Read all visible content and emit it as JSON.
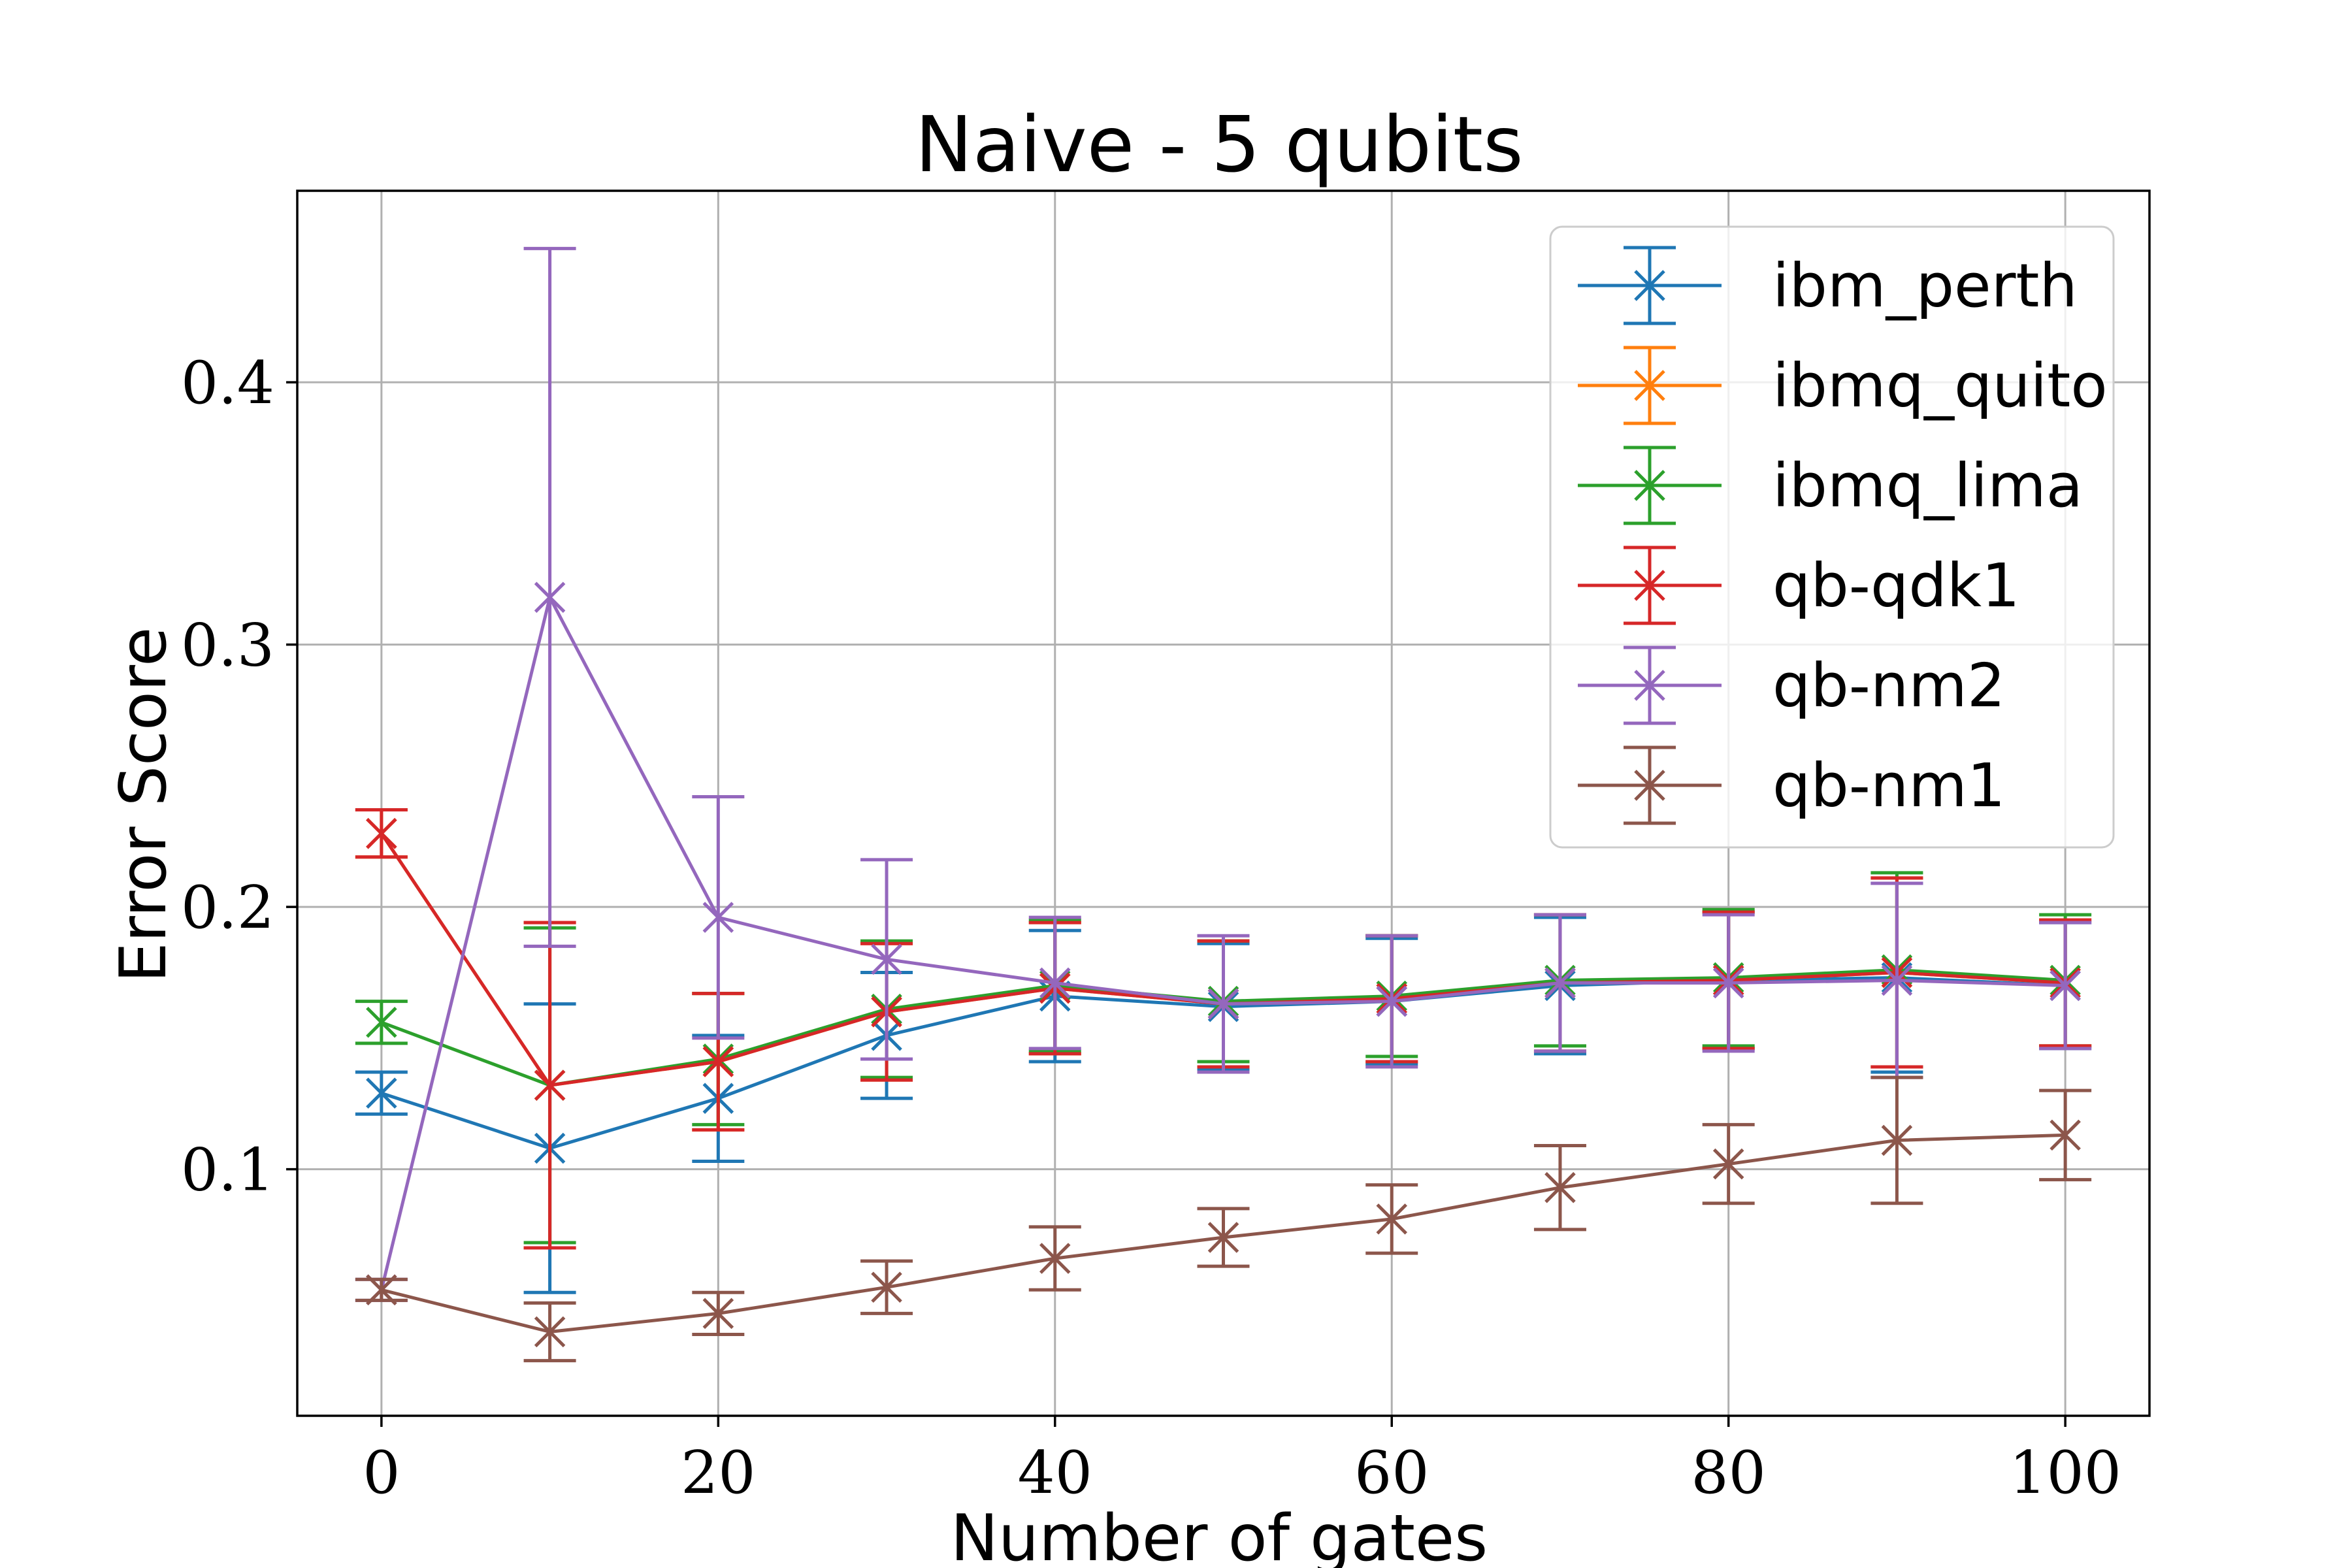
{
  "chart_data": {
    "type": "line",
    "title": "Naive - 5 qubits",
    "xlabel": "Number of gates",
    "ylabel": "Error Score",
    "xlim": [
      -5,
      105
    ],
    "ylim": [
      0.006,
      0.473
    ],
    "xticks": [
      0,
      20,
      40,
      60,
      80,
      100
    ],
    "xtick_labels": [
      "0",
      "20",
      "40",
      "60",
      "80",
      "100"
    ],
    "yticks": [
      0.1,
      0.2,
      0.3,
      0.4
    ],
    "ytick_labels": [
      "0.1",
      "0.2",
      "0.3",
      "0.4"
    ],
    "grid": true,
    "legend_position": "top-right",
    "x": [
      0,
      10,
      20,
      30,
      40,
      50,
      60,
      70,
      80,
      90,
      100
    ],
    "series": [
      {
        "name": "ibm_perth",
        "color": "#1f77b4",
        "values": [
          0.129,
          0.108,
          0.127,
          0.151,
          0.166,
          0.162,
          0.164,
          0.17,
          0.172,
          0.173,
          0.17
        ],
        "errors": [
          0.008,
          0.055,
          0.024,
          0.024,
          0.025,
          0.024,
          0.024,
          0.026,
          0.026,
          0.036,
          0.024
        ]
      },
      {
        "name": "ibmq_quito",
        "color": "#ff7f0e",
        "values": [
          0.228,
          0.132,
          0.141,
          0.16,
          0.169,
          0.163,
          0.165,
          0.171,
          0.172,
          0.175,
          0.171
        ],
        "errors": [
          0.009,
          0.062,
          0.026,
          0.026,
          0.025,
          0.024,
          0.024,
          0.026,
          0.026,
          0.036,
          0.024
        ]
      },
      {
        "name": "ibmq_lima",
        "color": "#2ca02c",
        "values": [
          0.156,
          0.132,
          0.142,
          0.161,
          0.17,
          0.164,
          0.166,
          0.172,
          0.173,
          0.176,
          0.172
        ],
        "errors": [
          0.008,
          0.06,
          0.025,
          0.026,
          0.025,
          0.023,
          0.023,
          0.025,
          0.026,
          0.037,
          0.025
        ]
      },
      {
        "name": "qb-qdk1",
        "color": "#d62728",
        "values": [
          0.228,
          0.132,
          0.141,
          0.16,
          0.169,
          0.163,
          0.165,
          0.171,
          0.172,
          0.175,
          0.171
        ],
        "errors": [
          0.009,
          0.062,
          0.026,
          0.026,
          0.025,
          0.024,
          0.024,
          0.026,
          0.026,
          0.036,
          0.024
        ]
      },
      {
        "name": "qb-nm2",
        "color": "#9467bd",
        "values": [
          0.054,
          0.318,
          0.196,
          0.18,
          0.171,
          0.163,
          0.164,
          0.171,
          0.171,
          0.172,
          0.17
        ],
        "errors": [
          0.004,
          0.133,
          0.046,
          0.038,
          0.025,
          0.026,
          0.025,
          0.026,
          0.026,
          0.037,
          0.024
        ]
      },
      {
        "name": "qb-nm1",
        "color": "#8c564b",
        "values": [
          0.054,
          0.038,
          0.045,
          0.055,
          0.066,
          0.074,
          0.081,
          0.093,
          0.102,
          0.111,
          0.113
        ],
        "errors": [
          0.004,
          0.011,
          0.008,
          0.01,
          0.012,
          0.011,
          0.013,
          0.016,
          0.015,
          0.024,
          0.017
        ]
      }
    ]
  }
}
